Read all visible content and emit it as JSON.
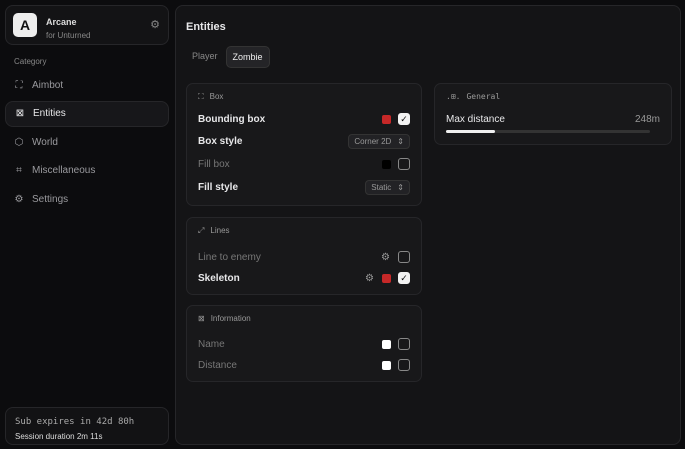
{
  "brand": {
    "logo": "A",
    "name": "Arcane",
    "subtitle": "for Unturned"
  },
  "sidebar": {
    "category_label": "Category",
    "items": [
      {
        "label": "Aimbot",
        "icon": "crosshair-icon",
        "glyph": "⛶",
        "active": false
      },
      {
        "label": "Entities",
        "icon": "entity-scan-icon",
        "glyph": "⊠",
        "active": true
      },
      {
        "label": "World",
        "icon": "cube-icon",
        "glyph": "⬡",
        "active": false
      },
      {
        "label": "Miscellaneous",
        "icon": "grid-icon",
        "glyph": "⌗",
        "active": false
      },
      {
        "label": "Settings",
        "icon": "gear-icon",
        "glyph": "⚙",
        "active": false
      }
    ]
  },
  "footer": {
    "expires": "Sub expires in 42d 80h",
    "session": "Session duration 2m 11s"
  },
  "main": {
    "title": "Entities",
    "tabs": [
      {
        "label": "Player",
        "active": false
      },
      {
        "label": "Zombie",
        "active": true
      }
    ]
  },
  "box": {
    "title": "Box",
    "bounding_box": {
      "label": "Bounding box",
      "color": "#c62828",
      "checked": true
    },
    "box_style": {
      "label": "Box style",
      "value": "Corner 2D"
    },
    "fill_box": {
      "label": "Fill box",
      "color": "#000000",
      "checked": false
    },
    "fill_style": {
      "label": "Fill style",
      "value": "Static"
    }
  },
  "lines": {
    "title": "Lines",
    "line_to_enemy": {
      "label": "Line to enemy",
      "checked": false
    },
    "skeleton": {
      "label": "Skeleton",
      "color": "#c62828",
      "checked": true
    }
  },
  "information": {
    "title": "Information",
    "name": {
      "label": "Name",
      "color": "#ffffff",
      "checked": false
    },
    "distance": {
      "label": "Distance",
      "color": "#ffffff",
      "checked": false
    }
  },
  "general": {
    "title": "General",
    "max_distance": {
      "label": "Max distance",
      "value_text": "248m",
      "fill_percent": 24
    }
  }
}
